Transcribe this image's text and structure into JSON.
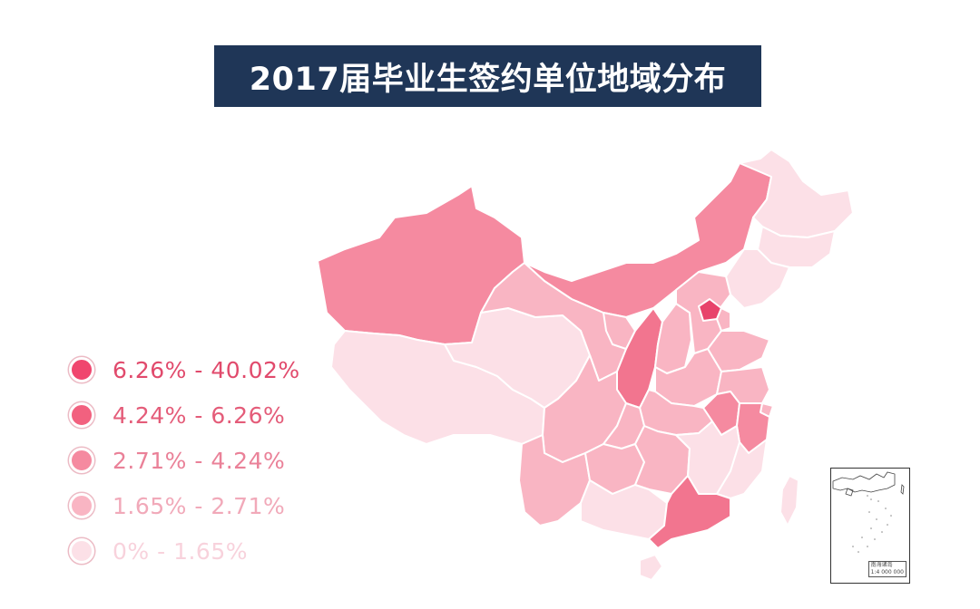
{
  "title": "2017届毕业生签约单位地域分布",
  "legend": [
    {
      "range": "6.26% - 40.02%",
      "color": "#f0466e",
      "text_color": "#e14a6c"
    },
    {
      "range": "4.24% - 6.26%",
      "color": "#f2617f",
      "text_color": "#e45c79"
    },
    {
      "range": "2.71% - 4.24%",
      "color": "#f58aa0",
      "text_color": "#ea8198"
    },
    {
      "range": "1.65% - 2.71%",
      "color": "#f9b5c3",
      "text_color": "#f1a9b9"
    },
    {
      "range": "0% - 1.65%",
      "color": "#fce0e7",
      "text_color": "#f8d2dc"
    }
  ],
  "inset": {
    "caption": "南海诸岛",
    "scale": "1:4 000 000"
  },
  "colors": {
    "title_bg": "#1f3657",
    "title_text": "#ffffff",
    "border": "#ffffff",
    "level_1": "#e8436b",
    "level_2": "#f2758f",
    "level_3": "#f58aa0",
    "level_4": "#f9b5c3",
    "level_5": "#fce0e7"
  }
}
